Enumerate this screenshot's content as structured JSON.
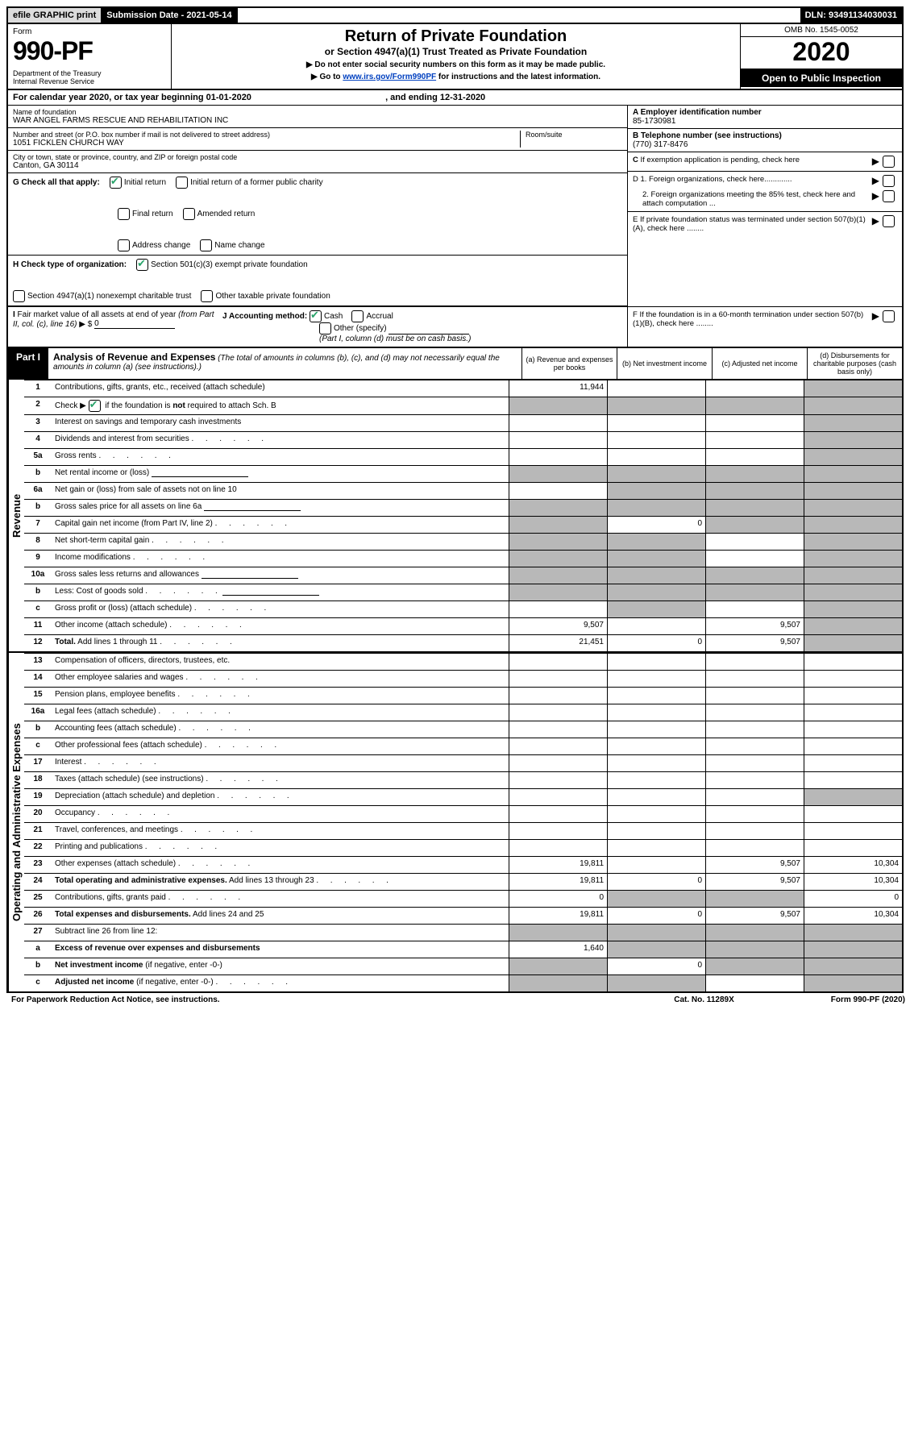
{
  "topbar": {
    "efile": "efile GRAPHIC print",
    "submission": "Submission Date - 2021-05-14",
    "dln": "DLN: 93491134030031"
  },
  "header": {
    "form_label": "Form",
    "form_num": "990-PF",
    "dept": "Department of the Treasury\nInternal Revenue Service",
    "title": "Return of Private Foundation",
    "subtitle": "or Section 4947(a)(1) Trust Treated as Private Foundation",
    "instr1": "▶ Do not enter social security numbers on this form as it may be made public.",
    "instr2_pre": "▶ Go to ",
    "instr2_link": "www.irs.gov/Form990PF",
    "instr2_post": " for instructions and the latest information.",
    "omb": "OMB No. 1545-0052",
    "year": "2020",
    "open": "Open to Public Inspection"
  },
  "cal": {
    "text_pre": "For calendar year 2020, or tax year beginning ",
    "begin": "01-01-2020",
    "text_mid": " , and ending ",
    "end": "12-31-2020"
  },
  "info": {
    "name_label": "Name of foundation",
    "name": "WAR ANGEL FARMS RESCUE AND REHABILITATION INC",
    "addr_label": "Number and street (or P.O. box number if mail is not delivered to street address)",
    "addr": "1051 FICKLEN CHURCH WAY",
    "room_label": "Room/suite",
    "city_label": "City or town, state or province, country, and ZIP or foreign postal code",
    "city": "Canton, GA  30114",
    "ein_label": "A Employer identification number",
    "ein": "85-1730981",
    "phone_label": "B Telephone number (see instructions)",
    "phone": "(770) 317-8476",
    "c_label": "C If exemption application is pending, check here",
    "d1": "D 1. Foreign organizations, check here.............",
    "d2": "2. Foreign organizations meeting the 85% test, check here and attach computation ...",
    "e_label": "E If private foundation status was terminated under section 507(b)(1)(A), check here ........",
    "f_label": "F If the foundation is in a 60-month termination under section 507(b)(1)(B), check here ........"
  },
  "g": {
    "label": "G Check all that apply:",
    "opts": [
      "Initial return",
      "Initial return of a former public charity",
      "Final return",
      "Amended return",
      "Address change",
      "Name change"
    ]
  },
  "h": {
    "label": "H Check type of organization:",
    "opt1": "Section 501(c)(3) exempt private foundation",
    "opt2": "Section 4947(a)(1) nonexempt charitable trust",
    "opt3": "Other taxable private foundation"
  },
  "i": {
    "label": "I Fair market value of all assets at end of year (from Part II, col. (c), line 16) ▶ $",
    "val": "0"
  },
  "j": {
    "label": "J Accounting method:",
    "cash": "Cash",
    "accrual": "Accrual",
    "other": "Other (specify)",
    "note": "(Part I, column (d) must be on cash basis.)"
  },
  "part1": {
    "label": "Part I",
    "title": "Analysis of Revenue and Expenses",
    "sub": "(The total of amounts in columns (b), (c), and (d) may not necessarily equal the amounts in column (a) (see instructions).)",
    "col_a": "(a) Revenue and expenses per books",
    "col_b": "(b) Net investment income",
    "col_c": "(c) Adjusted net income",
    "col_d": "(d) Disbursements for charitable purposes (cash basis only)"
  },
  "sides": {
    "revenue": "Revenue",
    "expenses": "Operating and Administrative Expenses"
  },
  "rows": [
    {
      "n": "1",
      "d": "",
      "a": "11,944",
      "b": "",
      "c": "",
      "shade": [
        "d"
      ]
    },
    {
      "n": "2",
      "d": "",
      "a": "",
      "b": "",
      "c": "",
      "shade": [
        "a",
        "b",
        "c",
        "d"
      ],
      "bold_not": true
    },
    {
      "n": "3",
      "d": "",
      "a": "",
      "b": "",
      "c": "",
      "shade": [
        "d"
      ]
    },
    {
      "n": "4",
      "d": "",
      "a": "",
      "b": "",
      "c": "",
      "shade": [
        "d"
      ],
      "dots": true
    },
    {
      "n": "5a",
      "d": "",
      "a": "",
      "b": "",
      "c": "",
      "shade": [
        "d"
      ],
      "dots": true
    },
    {
      "n": "b",
      "d": "",
      "a": "",
      "b": "",
      "c": "",
      "shade": [
        "a",
        "b",
        "c",
        "d"
      ],
      "line": true
    },
    {
      "n": "6a",
      "d": "",
      "a": "",
      "b": "",
      "c": "",
      "shade": [
        "b",
        "c",
        "d"
      ]
    },
    {
      "n": "b",
      "d": "",
      "a": "",
      "b": "",
      "c": "",
      "shade": [
        "a",
        "b",
        "c",
        "d"
      ],
      "line": true
    },
    {
      "n": "7",
      "d": "",
      "a": "",
      "b": "0",
      "c": "",
      "shade": [
        "a",
        "c",
        "d"
      ],
      "dots": true
    },
    {
      "n": "8",
      "d": "",
      "a": "",
      "b": "",
      "c": "",
      "shade": [
        "a",
        "b",
        "d"
      ],
      "dots": true
    },
    {
      "n": "9",
      "d": "",
      "a": "",
      "b": "",
      "c": "",
      "shade": [
        "a",
        "b",
        "d"
      ],
      "dots": true
    },
    {
      "n": "10a",
      "d": "",
      "a": "",
      "b": "",
      "c": "",
      "shade": [
        "a",
        "b",
        "c",
        "d"
      ],
      "line": true
    },
    {
      "n": "b",
      "d": "",
      "a": "",
      "b": "",
      "c": "",
      "shade": [
        "a",
        "b",
        "c",
        "d"
      ],
      "dots": true,
      "line": true
    },
    {
      "n": "c",
      "d": "",
      "a": "",
      "b": "",
      "c": "",
      "shade": [
        "b",
        "d"
      ],
      "dots": true
    },
    {
      "n": "11",
      "d": "",
      "a": "9,507",
      "b": "",
      "c": "9,507",
      "shade": [
        "d"
      ],
      "dots": true
    },
    {
      "n": "12",
      "d": "",
      "a": "21,451",
      "b": "0",
      "c": "9,507",
      "shade": [
        "d"
      ],
      "dots": true,
      "bold": true
    }
  ],
  "exp_rows": [
    {
      "n": "13",
      "d": "",
      "a": "",
      "b": "",
      "c": ""
    },
    {
      "n": "14",
      "d": "",
      "a": "",
      "b": "",
      "c": "",
      "dots": true
    },
    {
      "n": "15",
      "d": "",
      "a": "",
      "b": "",
      "c": "",
      "dots": true
    },
    {
      "n": "16a",
      "d": "",
      "a": "",
      "b": "",
      "c": "",
      "dots": true
    },
    {
      "n": "b",
      "d": "",
      "a": "",
      "b": "",
      "c": "",
      "dots": true
    },
    {
      "n": "c",
      "d": "",
      "a": "",
      "b": "",
      "c": "",
      "dots": true
    },
    {
      "n": "17",
      "d": "",
      "a": "",
      "b": "",
      "c": "",
      "dots": true
    },
    {
      "n": "18",
      "d": "",
      "a": "",
      "b": "",
      "c": "",
      "dots": true
    },
    {
      "n": "19",
      "d": "",
      "a": "",
      "b": "",
      "c": "",
      "shade": [
        "d"
      ],
      "dots": true
    },
    {
      "n": "20",
      "d": "",
      "a": "",
      "b": "",
      "c": "",
      "dots": true
    },
    {
      "n": "21",
      "d": "",
      "a": "",
      "b": "",
      "c": "",
      "dots": true
    },
    {
      "n": "22",
      "d": "",
      "a": "",
      "b": "",
      "c": "",
      "dots": true
    },
    {
      "n": "23",
      "d": "10,304",
      "a": "19,811",
      "b": "",
      "c": "9,507",
      "dots": true
    },
    {
      "n": "24",
      "d": "10,304",
      "a": "19,811",
      "b": "0",
      "c": "9,507",
      "dots": true,
      "bold": true
    },
    {
      "n": "25",
      "d": "0",
      "a": "0",
      "b": "",
      "c": "",
      "shade": [
        "b",
        "c"
      ],
      "dots": true
    },
    {
      "n": "26",
      "d": "10,304",
      "a": "19,811",
      "b": "0",
      "c": "9,507",
      "bold": true
    },
    {
      "n": "27",
      "d": "",
      "a": "",
      "b": "",
      "c": "",
      "shade": [
        "a",
        "b",
        "c",
        "d"
      ]
    },
    {
      "n": "a",
      "d": "",
      "a": "1,640",
      "b": "",
      "c": "",
      "shade": [
        "b",
        "c",
        "d"
      ],
      "bold": true
    },
    {
      "n": "b",
      "d": "",
      "a": "",
      "b": "0",
      "c": "",
      "shade": [
        "a",
        "c",
        "d"
      ],
      "bold": true
    },
    {
      "n": "c",
      "d": "",
      "a": "",
      "b": "",
      "c": "",
      "shade": [
        "a",
        "b",
        "d"
      ],
      "bold": true,
      "dots": true
    }
  ],
  "footer": {
    "left": "For Paperwork Reduction Act Notice, see instructions.",
    "mid": "Cat. No. 11289X",
    "right": "Form 990-PF (2020)"
  }
}
